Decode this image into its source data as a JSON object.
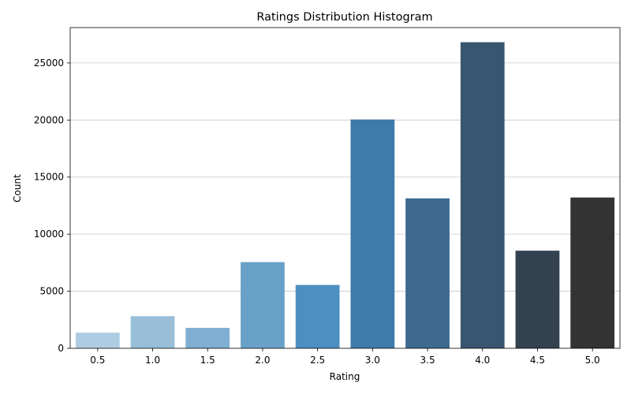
{
  "chart_data": {
    "type": "bar",
    "title": "Ratings Distribution Histogram",
    "xlabel": "Rating",
    "ylabel": "Count",
    "categories": [
      "0.5",
      "1.0",
      "1.5",
      "2.0",
      "2.5",
      "3.0",
      "3.5",
      "4.0",
      "4.5",
      "5.0"
    ],
    "values": [
      1370,
      2811,
      1791,
      7551,
      5550,
      20047,
      13136,
      26818,
      8551,
      13211
    ],
    "colors": [
      "#afcde2",
      "#98bed8",
      "#7fafd2",
      "#6aa1c8",
      "#4e8fc1",
      "#3f7aab",
      "#3d6890",
      "#395671",
      "#334250",
      "#333333"
    ],
    "ylim": [
      0,
      28100
    ],
    "yticks": [
      0,
      5000,
      10000,
      15000,
      20000,
      25000
    ],
    "ytick_labels": [
      "0",
      "5000",
      "10000",
      "15000",
      "20000",
      "25000"
    ],
    "grid": {
      "y": true,
      "x": false
    },
    "grid_color": "#c8c8c8"
  }
}
